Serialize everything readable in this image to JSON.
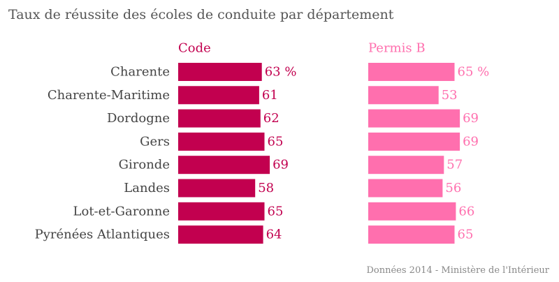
{
  "chart_data": {
    "type": "bar",
    "title": "Taux de réussite des écoles de conduite par département",
    "source": "Données 2014 - Ministère de l'Intérieur",
    "categories": [
      "Charente",
      "Charente-Maritime",
      "Dordogne",
      "Gers",
      "Gironde",
      "Landes",
      "Lot-et-Garonne",
      "Pyrénées Atlantiques"
    ],
    "series": [
      {
        "name": "Code",
        "color": "#c2004f",
        "values": [
          63,
          61,
          62,
          65,
          69,
          58,
          65,
          64
        ],
        "value_labels": [
          "63 %",
          "61",
          "62",
          "65",
          "69",
          "58",
          "65",
          "64"
        ]
      },
      {
        "name": "Permis B",
        "color": "#ff6fae",
        "values": [
          65,
          53,
          69,
          69,
          57,
          56,
          66,
          65
        ],
        "value_labels": [
          "65 %",
          "53",
          "69",
          "69",
          "57",
          "56",
          "66",
          "65"
        ]
      }
    ],
    "xlim": [
      0,
      100
    ],
    "grid": false,
    "legend": "none"
  }
}
